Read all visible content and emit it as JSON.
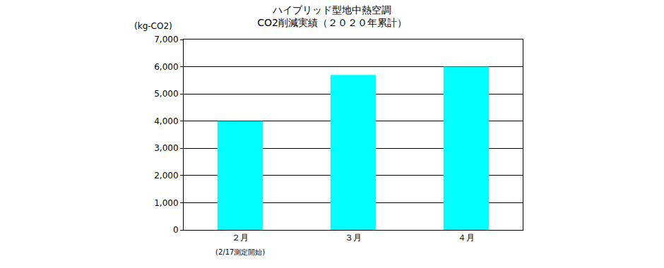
{
  "chart_data": {
    "type": "bar",
    "title": "ハイブリッド型地中熱空調\nCO2削減実績（２０２０年累計）",
    "ylabel": "(kg-CO2)",
    "categories": [
      "２月",
      "３月",
      "４月"
    ],
    "values": [
      4000,
      5700,
      6000
    ],
    "color": "#00ffff",
    "ylim": [
      0,
      7000
    ],
    "yticks": [
      0,
      {
        "value": 1000,
        "label": "1,000"
      },
      {
        "value": 2000,
        "label": "2,000"
      },
      {
        "value": 3000,
        "label": "3,000"
      },
      {
        "value": 4000,
        "label": "4,000"
      },
      {
        "value": 5000,
        "label": "5,000"
      },
      {
        "value": 6000,
        "label": "6,000"
      },
      {
        "value": 7000,
        "label": "7,000"
      }
    ],
    "grid": true,
    "annotations": [
      {
        "text": "(2/17測定開始)",
        "category": "２月"
      }
    ]
  }
}
